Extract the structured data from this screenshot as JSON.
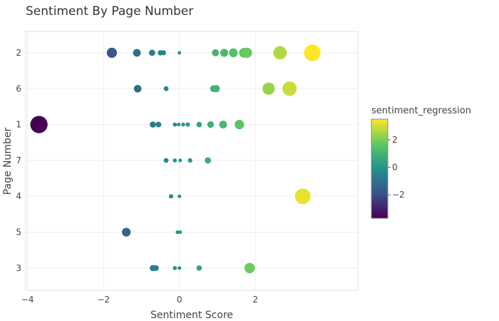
{
  "chart_data": {
    "type": "scatter",
    "title": "Sentiment By Page Number",
    "xlabel": "Sentiment Score",
    "ylabel": "Page Number",
    "xlim": [
      -4.05,
      4.7
    ],
    "x_ticks": [
      -4,
      -2,
      0,
      2
    ],
    "y_categories": [
      "2",
      "6",
      "1",
      "7",
      "4",
      "5",
      "3"
    ],
    "grid": true,
    "size_encoding": "absolute sentiment score",
    "color_scale": {
      "name": "sentiment_regression",
      "palette": "viridis",
      "range": [
        -3.7,
        3.5
      ],
      "ticks": [
        2,
        0,
        -2
      ],
      "stops": [
        "#440154",
        "#3b528b",
        "#21918c",
        "#5ec962",
        "#fde725"
      ]
    },
    "points": [
      {
        "page": "2",
        "x": -1.78,
        "color": -1.8
      },
      {
        "page": "2",
        "x": -1.12,
        "color": -1.1
      },
      {
        "page": "2",
        "x": -0.72,
        "color": -0.7
      },
      {
        "page": "2",
        "x": -0.5,
        "color": -0.5
      },
      {
        "page": "2",
        "x": -0.42,
        "color": -0.4
      },
      {
        "page": "2",
        "x": 0.0,
        "color": 0.0
      },
      {
        "page": "2",
        "x": 0.95,
        "color": 0.95
      },
      {
        "page": "2",
        "x": 1.18,
        "color": 1.18
      },
      {
        "page": "2",
        "x": 1.42,
        "color": 1.42
      },
      {
        "page": "2",
        "x": 1.7,
        "color": 1.7
      },
      {
        "page": "2",
        "x": 1.78,
        "color": 1.78
      },
      {
        "page": "2",
        "x": 2.65,
        "color": 2.65
      },
      {
        "page": "2",
        "x": 3.5,
        "color": 3.5
      },
      {
        "page": "6",
        "x": -1.1,
        "color": -1.1
      },
      {
        "page": "6",
        "x": -0.35,
        "color": -0.35
      },
      {
        "page": "6",
        "x": 0.9,
        "color": 0.9
      },
      {
        "page": "6",
        "x": 0.97,
        "color": 0.97
      },
      {
        "page": "6",
        "x": 2.35,
        "color": 2.35
      },
      {
        "page": "6",
        "x": 2.9,
        "color": 2.9
      },
      {
        "page": "1",
        "x": -3.7,
        "color": -3.7
      },
      {
        "page": "1",
        "x": -0.7,
        "color": -0.7
      },
      {
        "page": "1",
        "x": -0.55,
        "color": -0.55
      },
      {
        "page": "1",
        "x": -0.12,
        "color": -0.12
      },
      {
        "page": "1",
        "x": -0.02,
        "color": -0.02
      },
      {
        "page": "1",
        "x": 0.1,
        "color": 0.1
      },
      {
        "page": "1",
        "x": 0.22,
        "color": 0.22
      },
      {
        "page": "1",
        "x": 0.52,
        "color": 0.52
      },
      {
        "page": "1",
        "x": 0.82,
        "color": 0.82
      },
      {
        "page": "1",
        "x": 1.15,
        "color": 1.15
      },
      {
        "page": "1",
        "x": 1.58,
        "color": 1.58
      },
      {
        "page": "7",
        "x": -0.35,
        "color": -0.35
      },
      {
        "page": "7",
        "x": -0.12,
        "color": -0.12
      },
      {
        "page": "7",
        "x": 0.02,
        "color": 0.02
      },
      {
        "page": "7",
        "x": 0.28,
        "color": 0.28
      },
      {
        "page": "7",
        "x": 0.75,
        "color": 0.75
      },
      {
        "page": "4",
        "x": -0.22,
        "color": -0.22
      },
      {
        "page": "4",
        "x": 0.0,
        "color": 0.0
      },
      {
        "page": "4",
        "x": 3.25,
        "color": 3.25
      },
      {
        "page": "5",
        "x": -1.4,
        "color": -1.4
      },
      {
        "page": "5",
        "x": -0.05,
        "color": -0.05
      },
      {
        "page": "5",
        "x": 0.02,
        "color": 0.02
      },
      {
        "page": "3",
        "x": -0.7,
        "color": -0.7
      },
      {
        "page": "3",
        "x": -0.62,
        "color": -0.62
      },
      {
        "page": "3",
        "x": -0.12,
        "color": -0.12
      },
      {
        "page": "3",
        "x": 0.0,
        "color": 0.0
      },
      {
        "page": "3",
        "x": 0.52,
        "color": 0.52
      },
      {
        "page": "3",
        "x": 1.85,
        "color": 1.85
      }
    ]
  }
}
